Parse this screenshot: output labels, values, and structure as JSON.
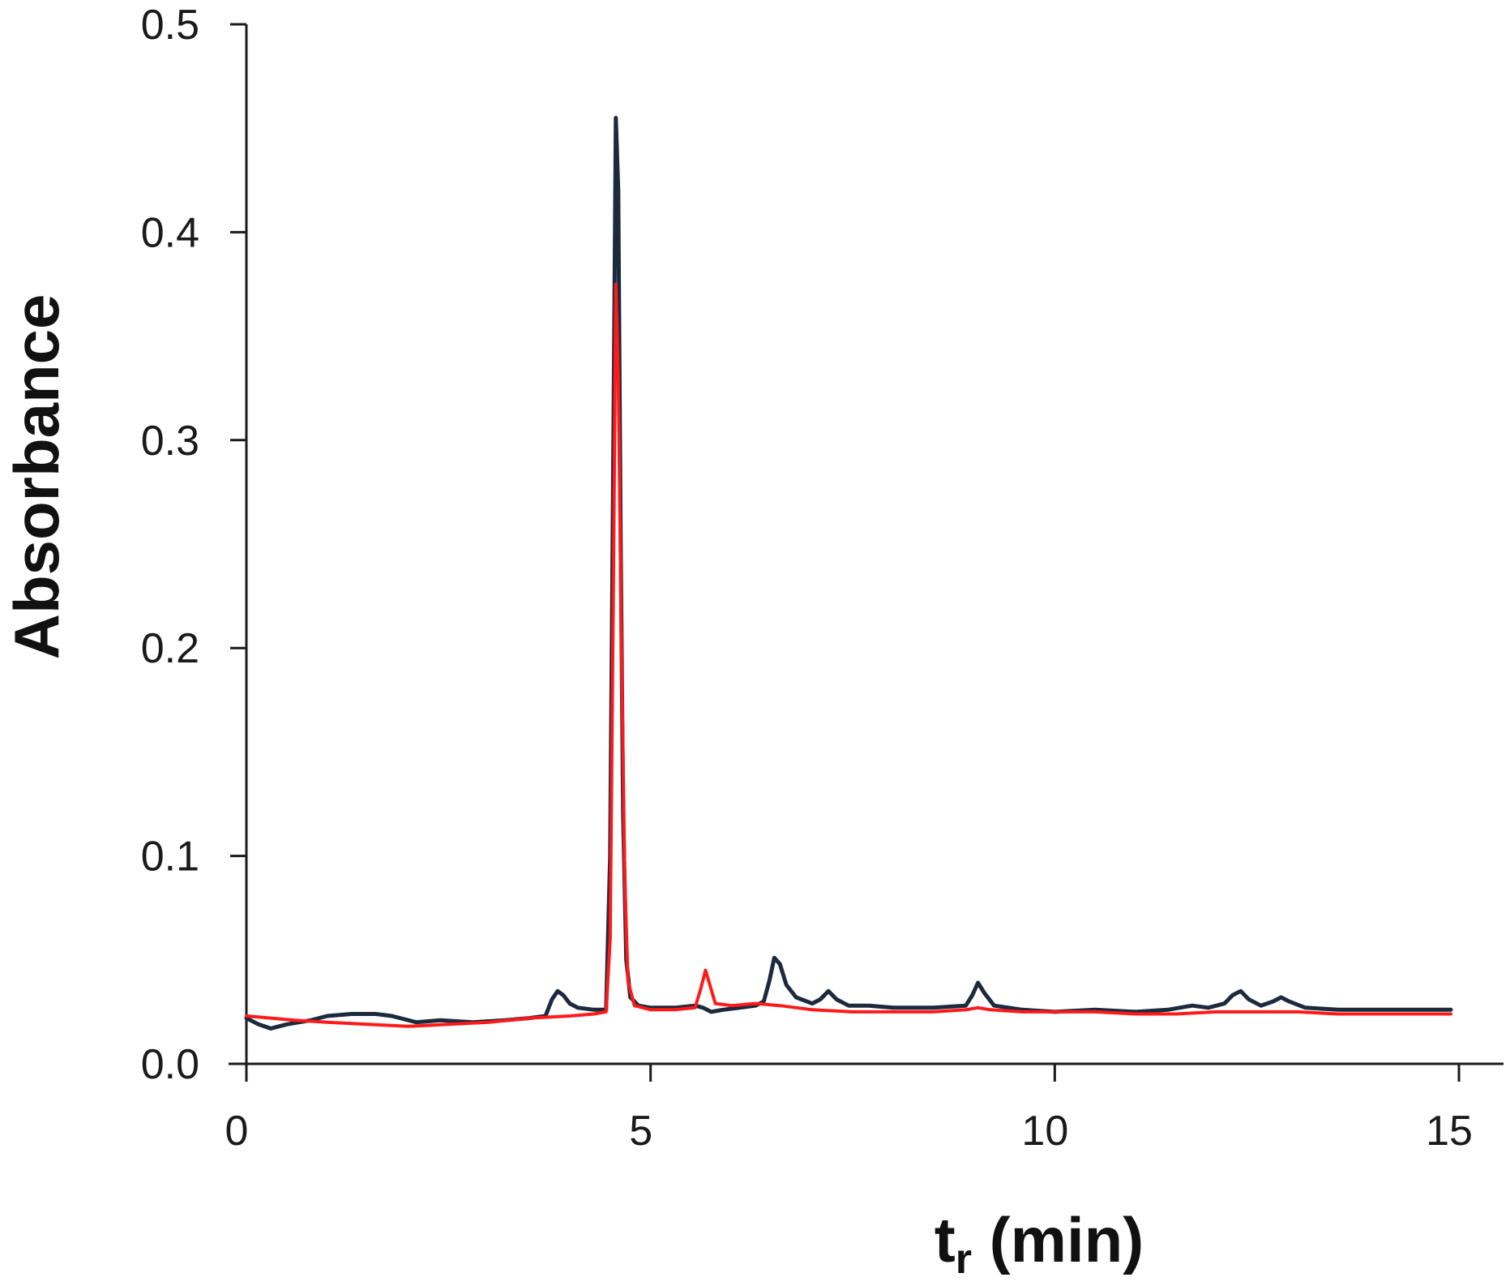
{
  "chart_data": {
    "type": "line",
    "title": "",
    "xlabel_main": "t",
    "xlabel_sub": "r",
    "xlabel_unit": " (min)",
    "ylabel": "Absorbance",
    "xlim": [
      0,
      15
    ],
    "ylim": [
      0,
      0.5
    ],
    "x_ticks": [
      0,
      5,
      10,
      15
    ],
    "x_tick_labels": [
      "0",
      "5",
      "10",
      "15"
    ],
    "y_ticks": [
      0.0,
      0.1,
      0.2,
      0.3,
      0.4,
      0.5
    ],
    "y_tick_labels": [
      "0.0",
      "0.1",
      "0.2",
      "0.3",
      "0.4",
      "0.5"
    ],
    "grid": false,
    "legend": "none",
    "series": [
      {
        "color": "#1c2a3d",
        "points": [
          [
            0.0,
            0.022
          ],
          [
            0.15,
            0.019
          ],
          [
            0.3,
            0.017
          ],
          [
            0.5,
            0.019
          ],
          [
            0.8,
            0.021
          ],
          [
            1.0,
            0.023
          ],
          [
            1.3,
            0.024
          ],
          [
            1.6,
            0.024
          ],
          [
            1.8,
            0.023
          ],
          [
            2.1,
            0.02
          ],
          [
            2.4,
            0.021
          ],
          [
            2.8,
            0.02
          ],
          [
            3.2,
            0.021
          ],
          [
            3.5,
            0.022
          ],
          [
            3.7,
            0.023
          ],
          [
            3.78,
            0.031
          ],
          [
            3.85,
            0.035
          ],
          [
            3.92,
            0.033
          ],
          [
            4.0,
            0.029
          ],
          [
            4.1,
            0.027
          ],
          [
            4.3,
            0.026
          ],
          [
            4.45,
            0.026
          ],
          [
            4.5,
            0.1
          ],
          [
            4.54,
            0.3
          ],
          [
            4.57,
            0.455
          ],
          [
            4.6,
            0.42
          ],
          [
            4.63,
            0.25
          ],
          [
            4.66,
            0.12
          ],
          [
            4.7,
            0.05
          ],
          [
            4.75,
            0.032
          ],
          [
            4.85,
            0.028
          ],
          [
            5.0,
            0.027
          ],
          [
            5.3,
            0.027
          ],
          [
            5.55,
            0.028
          ],
          [
            5.65,
            0.027
          ],
          [
            5.75,
            0.025
          ],
          [
            5.9,
            0.026
          ],
          [
            6.1,
            0.027
          ],
          [
            6.3,
            0.028
          ],
          [
            6.4,
            0.03
          ],
          [
            6.47,
            0.04
          ],
          [
            6.53,
            0.051
          ],
          [
            6.6,
            0.048
          ],
          [
            6.68,
            0.038
          ],
          [
            6.8,
            0.032
          ],
          [
            7.0,
            0.029
          ],
          [
            7.1,
            0.031
          ],
          [
            7.2,
            0.035
          ],
          [
            7.3,
            0.031
          ],
          [
            7.45,
            0.028
          ],
          [
            7.7,
            0.028
          ],
          [
            8.0,
            0.027
          ],
          [
            8.5,
            0.027
          ],
          [
            8.9,
            0.028
          ],
          [
            8.98,
            0.033
          ],
          [
            9.05,
            0.039
          ],
          [
            9.13,
            0.034
          ],
          [
            9.25,
            0.028
          ],
          [
            9.6,
            0.026
          ],
          [
            10.0,
            0.025
          ],
          [
            10.5,
            0.026
          ],
          [
            11.0,
            0.025
          ],
          [
            11.4,
            0.026
          ],
          [
            11.7,
            0.028
          ],
          [
            11.9,
            0.027
          ],
          [
            12.1,
            0.029
          ],
          [
            12.2,
            0.033
          ],
          [
            12.3,
            0.035
          ],
          [
            12.4,
            0.031
          ],
          [
            12.55,
            0.028
          ],
          [
            12.7,
            0.03
          ],
          [
            12.8,
            0.032
          ],
          [
            12.9,
            0.03
          ],
          [
            13.1,
            0.027
          ],
          [
            13.5,
            0.026
          ],
          [
            14.0,
            0.026
          ],
          [
            14.5,
            0.026
          ],
          [
            14.9,
            0.026
          ]
        ]
      },
      {
        "color": "#ff1a1a",
        "points": [
          [
            0.0,
            0.023
          ],
          [
            0.3,
            0.022
          ],
          [
            0.6,
            0.021
          ],
          [
            1.0,
            0.02
          ],
          [
            1.5,
            0.019
          ],
          [
            2.0,
            0.018
          ],
          [
            2.5,
            0.019
          ],
          [
            3.0,
            0.02
          ],
          [
            3.5,
            0.022
          ],
          [
            4.0,
            0.023
          ],
          [
            4.3,
            0.024
          ],
          [
            4.45,
            0.025
          ],
          [
            4.5,
            0.06
          ],
          [
            4.54,
            0.23
          ],
          [
            4.57,
            0.375
          ],
          [
            4.6,
            0.33
          ],
          [
            4.64,
            0.2
          ],
          [
            4.68,
            0.09
          ],
          [
            4.72,
            0.04
          ],
          [
            4.8,
            0.028
          ],
          [
            5.0,
            0.026
          ],
          [
            5.3,
            0.026
          ],
          [
            5.55,
            0.027
          ],
          [
            5.62,
            0.036
          ],
          [
            5.68,
            0.045
          ],
          [
            5.74,
            0.037
          ],
          [
            5.8,
            0.029
          ],
          [
            6.0,
            0.028
          ],
          [
            6.3,
            0.029
          ],
          [
            6.6,
            0.028
          ],
          [
            7.0,
            0.026
          ],
          [
            7.5,
            0.025
          ],
          [
            8.0,
            0.025
          ],
          [
            8.5,
            0.025
          ],
          [
            8.9,
            0.026
          ],
          [
            9.05,
            0.027
          ],
          [
            9.2,
            0.026
          ],
          [
            9.6,
            0.025
          ],
          [
            10.0,
            0.025
          ],
          [
            10.5,
            0.025
          ],
          [
            11.0,
            0.024
          ],
          [
            11.5,
            0.024
          ],
          [
            12.0,
            0.025
          ],
          [
            12.5,
            0.025
          ],
          [
            13.0,
            0.025
          ],
          [
            13.5,
            0.024
          ],
          [
            14.0,
            0.024
          ],
          [
            14.5,
            0.024
          ],
          [
            14.9,
            0.024
          ]
        ]
      }
    ]
  }
}
